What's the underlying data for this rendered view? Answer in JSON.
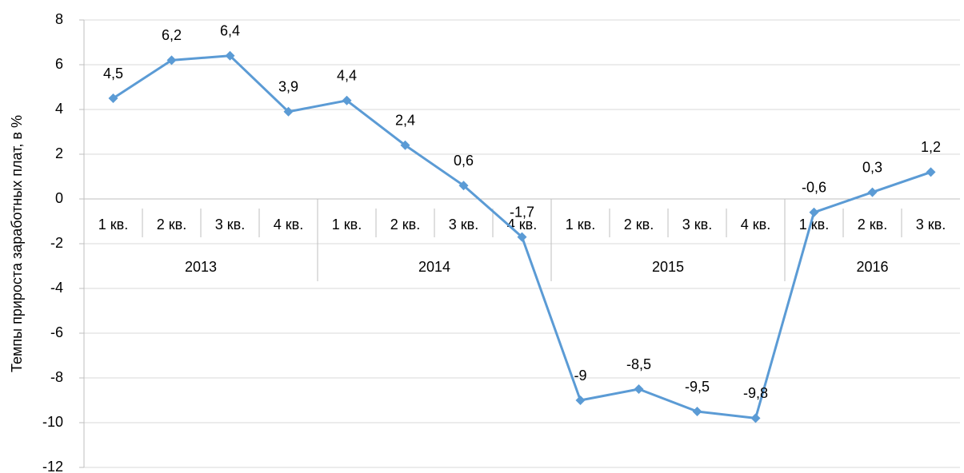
{
  "chart_data": {
    "type": "line",
    "y_label": "Темпы прироста заработных плат, в %",
    "groups": [
      {
        "name": "2013",
        "categories": [
          "1 кв.",
          "2 кв.",
          "3 кв.",
          "4 кв."
        ]
      },
      {
        "name": "2014",
        "categories": [
          "1 кв.",
          "2 кв.",
          "3 кв.",
          "4 кв."
        ]
      },
      {
        "name": "2015",
        "categories": [
          "1 кв.",
          "2 кв.",
          "3 кв.",
          "4 кв."
        ]
      },
      {
        "name": "2016",
        "categories": [
          "1 кв.",
          "2 кв.",
          "3 кв."
        ]
      }
    ],
    "values": [
      4.5,
      6.2,
      6.4,
      3.9,
      4.4,
      2.4,
      0.6,
      -1.7,
      -9,
      -8.5,
      -9.5,
      -9.8,
      -0.6,
      0.3,
      1.2
    ],
    "value_labels": [
      "4,5",
      "6,2",
      "6,4",
      "3,9",
      "4,4",
      "2,4",
      "0,6",
      "-1,7",
      "-9",
      "-8,5",
      "-9,5",
      "-9,8",
      "-0,6",
      "0,3",
      "1,2"
    ],
    "color": "#5b9bd5",
    "ylim": [
      -12,
      8
    ],
    "yticks": [
      -12,
      -10,
      -8,
      -6,
      -4,
      -2,
      0,
      2,
      4,
      6,
      8
    ],
    "grid": true
  }
}
